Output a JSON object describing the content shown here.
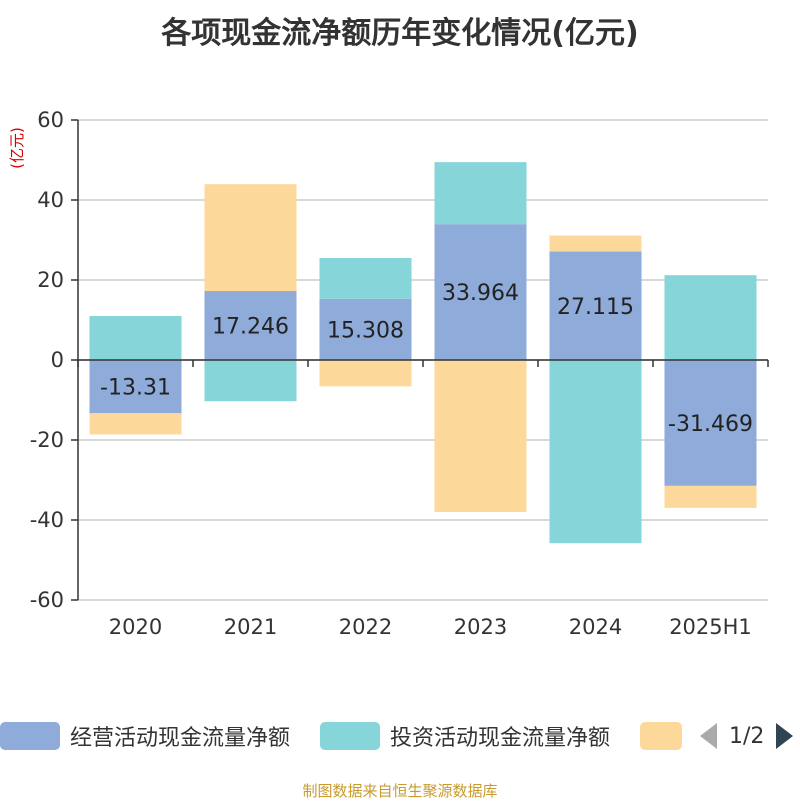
{
  "chart_data": {
    "type": "bar",
    "stacked": true,
    "title": "各项现金流净额历年变化情况(亿元)",
    "unit_label": "(亿元)",
    "categories": [
      "2020",
      "2021",
      "2022",
      "2023",
      "2024",
      "2025H1"
    ],
    "ylim": [
      -60,
      60
    ],
    "yticks": [
      60,
      40,
      20,
      0,
      -20,
      -40,
      -60
    ],
    "grid": true,
    "legend_position": "bottom",
    "series": [
      {
        "name": "经营活动现金流量净额",
        "color": "#8fabd9",
        "values": [
          -13.31,
          17.246,
          15.308,
          33.964,
          27.115,
          -31.469
        ],
        "show_labels": true
      },
      {
        "name": "投资活动现金流量净额",
        "color": "#86d5d8",
        "values": [
          11.0,
          -10.3,
          10.2,
          15.5,
          -45.8,
          21.2
        ],
        "show_labels": false
      },
      {
        "name": "",
        "color": "#fcd99b",
        "values": [
          -5.3,
          26.7,
          -6.6,
          -38.0,
          4.0,
          -5.5
        ],
        "show_labels": false
      }
    ]
  },
  "legend": {
    "pager_text": "1/2"
  },
  "source_note": "制图数据来自恒生聚源数据库"
}
